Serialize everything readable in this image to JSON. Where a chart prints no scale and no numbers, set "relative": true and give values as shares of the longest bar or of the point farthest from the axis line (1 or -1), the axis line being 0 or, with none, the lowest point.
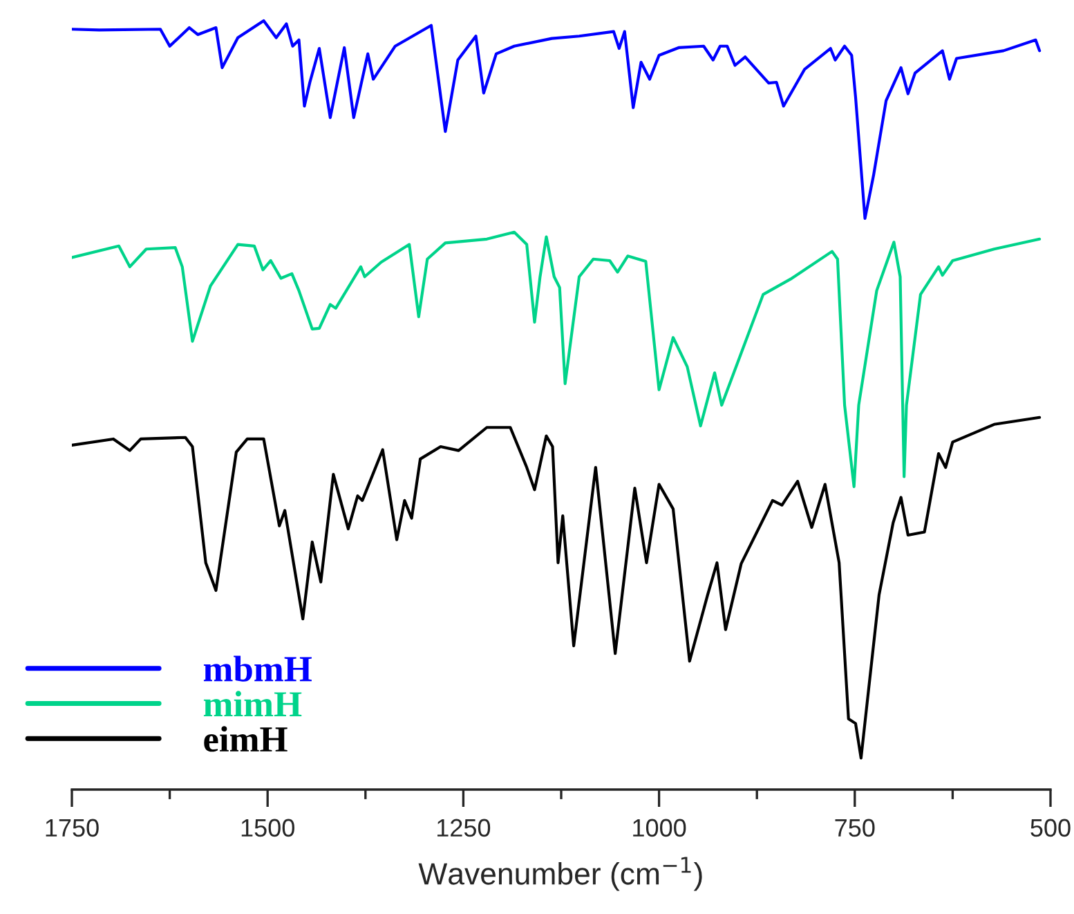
{
  "chart_data": {
    "type": "line",
    "relative": true,
    "xlabel": "Wavenumber (cm$^{−1}$)",
    "xlim": [
      1750,
      500
    ],
    "xticks": [
      1750,
      {
        "value": 1625,
        "label": null
      },
      1500,
      {
        "value": 1375,
        "label": null
      },
      1250,
      {
        "value": 1125,
        "label": null
      },
      1000,
      {
        "value": 875,
        "label": null
      },
      750,
      {
        "value": 625,
        "label": null
      },
      500
    ],
    "tick_labels": "x",
    "legend": "bottom left",
    "grid": false,
    "marker": "none",
    "line_style": "solid",
    "series": [
      {
        "name": "mbmH",
        "color": "#0000ff",
        "x": [
          1750,
          1715,
          1637,
          1625,
          1600,
          1589,
          1566,
          1558,
          1538,
          1505,
          1489,
          1476,
          1468,
          1460,
          1453,
          1446,
          1434,
          1420,
          1402,
          1390,
          1372,
          1365,
          1337,
          1291,
          1273,
          1257,
          1234,
          1224,
          1208,
          1185,
          1137,
          1102,
          1058,
          1051,
          1044,
          1033,
          1023,
          1012,
          1000,
          975,
          943,
          931,
          922,
          913,
          903,
          890,
          860,
          850,
          841,
          814,
          781,
          775,
          763,
          754,
          749,
          737,
          726,
          710,
          691,
          682,
          673,
          638,
          629,
          620,
          560,
          519,
          514
        ],
        "values": [
          0.989,
          0.988,
          0.989,
          0.967,
          0.991,
          0.982,
          0.991,
          0.939,
          0.978,
          1.0,
          0.978,
          0.996,
          0.967,
          0.975,
          0.889,
          0.92,
          0.964,
          0.874,
          0.965,
          0.874,
          0.957,
          0.924,
          0.967,
          0.994,
          0.856,
          0.949,
          0.98,
          0.906,
          0.957,
          0.967,
          0.977,
          0.98,
          0.986,
          0.964,
          0.986,
          0.887,
          0.946,
          0.924,
          0.955,
          0.965,
          0.967,
          0.949,
          0.967,
          0.967,
          0.942,
          0.953,
          0.919,
          0.92,
          0.889,
          0.937,
          0.964,
          0.949,
          0.967,
          0.955,
          0.901,
          0.743,
          0.799,
          0.896,
          0.939,
          0.905,
          0.932,
          0.961,
          0.924,
          0.951,
          0.961,
          0.975,
          0.961
        ]
      },
      {
        "name": "mimH",
        "color": "#00d38a",
        "x": [
          1750,
          1690,
          1676,
          1655,
          1618,
          1609,
          1596,
          1573,
          1538,
          1517,
          1506,
          1496,
          1483,
          1469,
          1460,
          1443,
          1434,
          1420,
          1413,
          1381,
          1376,
          1355,
          1319,
          1307,
          1296,
          1273,
          1220,
          1185,
          1169,
          1159,
          1152,
          1144,
          1134,
          1127,
          1120,
          1102,
          1084,
          1063,
          1053,
          1040,
          1017,
          1000,
          982,
          964,
          947,
          929,
          920,
          867,
          832,
          779,
          772,
          763,
          751,
          745,
          722,
          700,
          692,
          687,
          684,
          666,
          643,
          638,
          625,
          572,
          514
        ],
        "values": [
          0.692,
          0.707,
          0.68,
          0.703,
          0.705,
          0.68,
          0.583,
          0.655,
          0.709,
          0.707,
          0.676,
          0.688,
          0.665,
          0.671,
          0.649,
          0.599,
          0.6,
          0.631,
          0.626,
          0.68,
          0.667,
          0.686,
          0.709,
          0.615,
          0.69,
          0.711,
          0.716,
          0.725,
          0.709,
          0.608,
          0.667,
          0.719,
          0.667,
          0.653,
          0.528,
          0.667,
          0.69,
          0.688,
          0.673,
          0.694,
          0.687,
          0.52,
          0.588,
          0.55,
          0.473,
          0.542,
          0.5,
          0.644,
          0.664,
          0.7,
          0.69,
          0.5,
          0.394,
          0.5,
          0.649,
          0.712,
          0.667,
          0.407,
          0.5,
          0.644,
          0.68,
          0.669,
          0.688,
          0.703,
          0.716
        ]
      },
      {
        "name": "eimH",
        "color": "#000000",
        "x": [
          1750,
          1697,
          1676,
          1662,
          1605,
          1596,
          1579,
          1566,
          1540,
          1526,
          1505,
          1485,
          1478,
          1455,
          1443,
          1432,
          1416,
          1397,
          1385,
          1379,
          1353,
          1335,
          1325,
          1316,
          1305,
          1279,
          1256,
          1220,
          1190,
          1169,
          1159,
          1144,
          1136,
          1129,
          1123,
          1109,
          1081,
          1056,
          1031,
          1016,
          1000,
          982,
          961,
          938,
          926,
          915,
          895,
          855,
          843,
          823,
          805,
          788,
          770,
          758,
          749,
          742,
          719,
          701,
          691,
          682,
          661,
          643,
          634,
          625,
          572,
          514
        ],
        "values": [
          0.448,
          0.456,
          0.441,
          0.456,
          0.458,
          0.446,
          0.295,
          0.259,
          0.439,
          0.456,
          0.456,
          0.343,
          0.363,
          0.222,
          0.322,
          0.27,
          0.41,
          0.339,
          0.382,
          0.376,
          0.442,
          0.325,
          0.376,
          0.353,
          0.43,
          0.446,
          0.441,
          0.471,
          0.471,
          0.419,
          0.39,
          0.46,
          0.446,
          0.295,
          0.356,
          0.187,
          0.419,
          0.177,
          0.392,
          0.295,
          0.397,
          0.365,
          0.167,
          0.253,
          0.295,
          0.208,
          0.294,
          0.376,
          0.37,
          0.401,
          0.341,
          0.397,
          0.295,
          0.092,
          0.086,
          0.041,
          0.253,
          0.347,
          0.38,
          0.331,
          0.335,
          0.437,
          0.419,
          0.452,
          0.475,
          0.484
        ]
      }
    ]
  }
}
